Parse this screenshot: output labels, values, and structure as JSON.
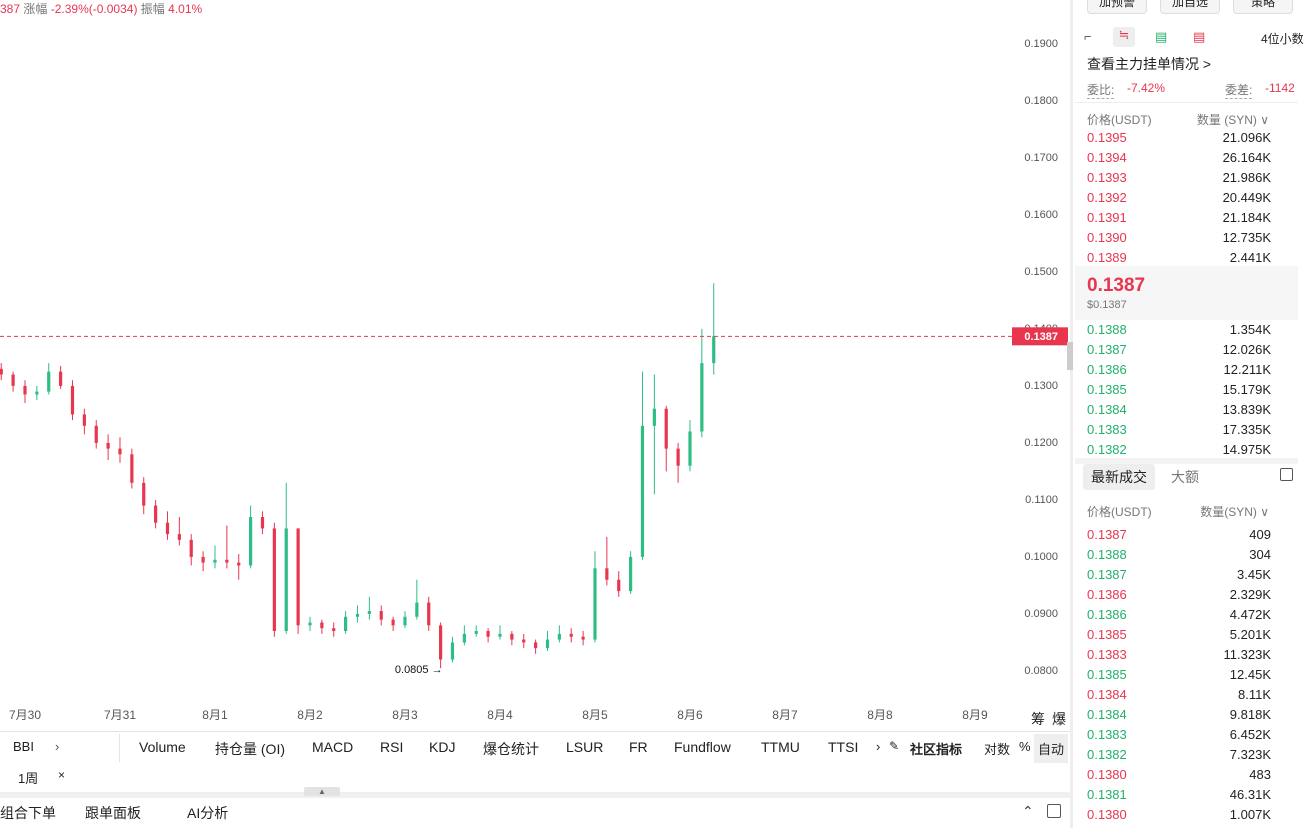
{
  "header": {
    "symbol_fragment": "387",
    "change_label": "涨幅",
    "change": "-2.39%(-0.0034)",
    "amplitude_label": "振幅",
    "amplitude": "4.01%"
  },
  "chart_data": {
    "type": "candlestick",
    "up_color": "#2ebd85",
    "down_color": "#e8364f",
    "xlim": [
      -0.263,
      10.316
    ],
    "ylim": [
      0.0749,
      0.1977
    ],
    "xticks": [
      {
        "value": 0,
        "label": "7月30"
      },
      {
        "value": 1,
        "label": "7月31"
      },
      {
        "value": 2,
        "label": "8月1"
      },
      {
        "value": 3,
        "label": "8月2"
      },
      {
        "value": 4,
        "label": "8月3"
      },
      {
        "value": 5,
        "label": "8月4"
      },
      {
        "value": 6,
        "label": "8月5"
      },
      {
        "value": 7,
        "label": "8月6"
      },
      {
        "value": 8,
        "label": "8月7"
      },
      {
        "value": 9,
        "label": "8月8"
      },
      {
        "value": 10,
        "label": "8月9"
      }
    ],
    "yticks": [
      {
        "value": 0.08,
        "label": "0.0800"
      },
      {
        "value": 0.09,
        "label": "0.0900"
      },
      {
        "value": 0.1,
        "label": "0.1000"
      },
      {
        "value": 0.11,
        "label": "0.1100"
      },
      {
        "value": 0.12,
        "label": "0.1200"
      },
      {
        "value": 0.13,
        "label": "0.1300"
      },
      {
        "value": 0.14,
        "label": "0.1400"
      },
      {
        "value": 0.15,
        "label": "0.1500"
      },
      {
        "value": 0.16,
        "label": "0.1600"
      },
      {
        "value": 0.17,
        "label": "0.1700"
      },
      {
        "value": 0.18,
        "label": "0.1800"
      },
      {
        "value": 0.19,
        "label": "0.1900"
      }
    ],
    "last_price": 0.1387,
    "last_price_color": "#e8364f",
    "annotation": {
      "text": "0.0805 →",
      "x": 4.375,
      "y": 0.0805
    },
    "candles": [
      {
        "x": -0.25,
        "open": 0.133,
        "high": 0.134,
        "low": 0.131,
        "close": 0.132
      },
      {
        "x": -0.125,
        "open": 0.132,
        "high": 0.1325,
        "low": 0.129,
        "close": 0.13
      },
      {
        "x": 0,
        "open": 0.13,
        "high": 0.131,
        "low": 0.127,
        "close": 0.1285
      },
      {
        "x": 0.125,
        "open": 0.1285,
        "high": 0.13,
        "low": 0.1275,
        "close": 0.129
      },
      {
        "x": 0.25,
        "open": 0.129,
        "high": 0.134,
        "low": 0.1285,
        "close": 0.1325
      },
      {
        "x": 0.375,
        "open": 0.1325,
        "high": 0.1335,
        "low": 0.1295,
        "close": 0.13
      },
      {
        "x": 0.5,
        "open": 0.13,
        "high": 0.131,
        "low": 0.124,
        "close": 0.125
      },
      {
        "x": 0.625,
        "open": 0.125,
        "high": 0.126,
        "low": 0.1215,
        "close": 0.123
      },
      {
        "x": 0.75,
        "open": 0.123,
        "high": 0.124,
        "low": 0.119,
        "close": 0.12
      },
      {
        "x": 0.875,
        "open": 0.12,
        "high": 0.1215,
        "low": 0.117,
        "close": 0.119
      },
      {
        "x": 1,
        "open": 0.119,
        "high": 0.121,
        "low": 0.1165,
        "close": 0.118
      },
      {
        "x": 1.125,
        "open": 0.118,
        "high": 0.119,
        "low": 0.112,
        "close": 0.113
      },
      {
        "x": 1.25,
        "open": 0.113,
        "high": 0.114,
        "low": 0.1075,
        "close": 0.109
      },
      {
        "x": 1.375,
        "open": 0.109,
        "high": 0.11,
        "low": 0.105,
        "close": 0.106
      },
      {
        "x": 1.5,
        "open": 0.106,
        "high": 0.108,
        "low": 0.103,
        "close": 0.104
      },
      {
        "x": 1.625,
        "open": 0.104,
        "high": 0.107,
        "low": 0.102,
        "close": 0.103
      },
      {
        "x": 1.75,
        "open": 0.103,
        "high": 0.104,
        "low": 0.0985,
        "close": 0.1
      },
      {
        "x": 1.875,
        "open": 0.1,
        "high": 0.101,
        "low": 0.0975,
        "close": 0.099
      },
      {
        "x": 2,
        "open": 0.099,
        "high": 0.102,
        "low": 0.098,
        "close": 0.0995
      },
      {
        "x": 2.125,
        "open": 0.0995,
        "high": 0.1055,
        "low": 0.098,
        "close": 0.099
      },
      {
        "x": 2.25,
        "open": 0.099,
        "high": 0.1005,
        "low": 0.096,
        "close": 0.0985
      },
      {
        "x": 2.375,
        "open": 0.0985,
        "high": 0.109,
        "low": 0.098,
        "close": 0.107
      },
      {
        "x": 2.5,
        "open": 0.107,
        "high": 0.108,
        "low": 0.104,
        "close": 0.105
      },
      {
        "x": 2.625,
        "open": 0.105,
        "high": 0.106,
        "low": 0.086,
        "close": 0.087
      },
      {
        "x": 2.75,
        "open": 0.087,
        "high": 0.113,
        "low": 0.0865,
        "close": 0.105
      },
      {
        "x": 2.875,
        "open": 0.105,
        "high": 0.105,
        "low": 0.0865,
        "close": 0.088
      },
      {
        "x": 3,
        "open": 0.088,
        "high": 0.0895,
        "low": 0.087,
        "close": 0.0885
      },
      {
        "x": 3.125,
        "open": 0.0885,
        "high": 0.089,
        "low": 0.0865,
        "close": 0.0875
      },
      {
        "x": 3.25,
        "open": 0.0875,
        "high": 0.0885,
        "low": 0.086,
        "close": 0.087
      },
      {
        "x": 3.375,
        "open": 0.087,
        "high": 0.0905,
        "low": 0.0865,
        "close": 0.0895
      },
      {
        "x": 3.5,
        "open": 0.0895,
        "high": 0.0915,
        "low": 0.0885,
        "close": 0.09
      },
      {
        "x": 3.625,
        "open": 0.09,
        "high": 0.093,
        "low": 0.089,
        "close": 0.0905
      },
      {
        "x": 3.75,
        "open": 0.0905,
        "high": 0.0915,
        "low": 0.088,
        "close": 0.089
      },
      {
        "x": 3.875,
        "open": 0.089,
        "high": 0.0895,
        "low": 0.087,
        "close": 0.088
      },
      {
        "x": 4,
        "open": 0.088,
        "high": 0.0905,
        "low": 0.0875,
        "close": 0.0895
      },
      {
        "x": 4.125,
        "open": 0.0895,
        "high": 0.096,
        "low": 0.089,
        "close": 0.092
      },
      {
        "x": 4.25,
        "open": 0.092,
        "high": 0.093,
        "low": 0.087,
        "close": 0.088
      },
      {
        "x": 4.375,
        "open": 0.088,
        "high": 0.0885,
        "low": 0.0805,
        "close": 0.082
      },
      {
        "x": 4.5,
        "open": 0.082,
        "high": 0.086,
        "low": 0.0815,
        "close": 0.085
      },
      {
        "x": 4.625,
        "open": 0.085,
        "high": 0.088,
        "low": 0.0845,
        "close": 0.0865
      },
      {
        "x": 4.75,
        "open": 0.0865,
        "high": 0.088,
        "low": 0.086,
        "close": 0.087
      },
      {
        "x": 4.875,
        "open": 0.087,
        "high": 0.0875,
        "low": 0.085,
        "close": 0.086
      },
      {
        "x": 5,
        "open": 0.086,
        "high": 0.088,
        "low": 0.0855,
        "close": 0.0865
      },
      {
        "x": 5.125,
        "open": 0.0865,
        "high": 0.087,
        "low": 0.0845,
        "close": 0.0855
      },
      {
        "x": 5.25,
        "open": 0.0855,
        "high": 0.0865,
        "low": 0.084,
        "close": 0.085
      },
      {
        "x": 5.375,
        "open": 0.085,
        "high": 0.0855,
        "low": 0.083,
        "close": 0.084
      },
      {
        "x": 5.5,
        "open": 0.084,
        "high": 0.087,
        "low": 0.0835,
        "close": 0.0855
      },
      {
        "x": 5.625,
        "open": 0.0855,
        "high": 0.088,
        "low": 0.085,
        "close": 0.0865
      },
      {
        "x": 5.75,
        "open": 0.0865,
        "high": 0.0875,
        "low": 0.085,
        "close": 0.086
      },
      {
        "x": 5.875,
        "open": 0.086,
        "high": 0.087,
        "low": 0.0845,
        "close": 0.0855
      },
      {
        "x": 6,
        "open": 0.0855,
        "high": 0.101,
        "low": 0.085,
        "close": 0.098
      },
      {
        "x": 6.125,
        "open": 0.098,
        "high": 0.1035,
        "low": 0.095,
        "close": 0.096
      },
      {
        "x": 6.25,
        "open": 0.096,
        "high": 0.0975,
        "low": 0.093,
        "close": 0.094
      },
      {
        "x": 6.375,
        "open": 0.094,
        "high": 0.101,
        "low": 0.0935,
        "close": 0.1
      },
      {
        "x": 6.5,
        "open": 0.1,
        "high": 0.1325,
        "low": 0.0995,
        "close": 0.123
      },
      {
        "x": 6.625,
        "open": 0.123,
        "high": 0.132,
        "low": 0.111,
        "close": 0.126
      },
      {
        "x": 6.75,
        "open": 0.126,
        "high": 0.1265,
        "low": 0.115,
        "close": 0.119
      },
      {
        "x": 6.875,
        "open": 0.119,
        "high": 0.12,
        "low": 0.113,
        "close": 0.116
      },
      {
        "x": 7,
        "open": 0.116,
        "high": 0.124,
        "low": 0.115,
        "close": 0.122
      },
      {
        "x": 7.125,
        "open": 0.122,
        "high": 0.14,
        "low": 0.121,
        "close": 0.134
      },
      {
        "x": 7.25,
        "open": 0.134,
        "high": 0.148,
        "low": 0.132,
        "close": 0.1387
      }
    ]
  },
  "chart_side_labels": [
    "筹",
    "爆"
  ],
  "indicators": {
    "first": "BBI",
    "items": [
      "Volume",
      "持仓量 (OI)",
      "MACD",
      "RSI",
      "KDJ",
      "爆仓统计",
      "LSUR",
      "FR",
      "Fundflow",
      "TTMU",
      "TTSI"
    ],
    "community": "社区指标",
    "log": "对数",
    "percent": "%",
    "auto": "自动",
    "period": "1周",
    "close": "×"
  },
  "bottom_bar": [
    "组合下单",
    "跟单面板",
    "AI分析"
  ],
  "top_buttons": [
    "加预警",
    "加自选",
    "策略"
  ],
  "order_book": {
    "decimals": "4位小数",
    "main_orders": "查看主力挂单情况 >",
    "ratio_label": "委比:",
    "ratio": "-7.42%",
    "diff_label": "委差:",
    "diff": "-1142",
    "price_header": "价格(USDT)",
    "qty_header": "数量 (SYN) ∨",
    "ask_color": "#e8364f",
    "bid_color": "#20b26c",
    "asks": [
      [
        "0.1395",
        "21.096K"
      ],
      [
        "0.1394",
        "26.164K"
      ],
      [
        "0.1393",
        "21.986K"
      ],
      [
        "0.1392",
        "20.449K"
      ],
      [
        "0.1391",
        "21.184K"
      ],
      [
        "0.1390",
        "12.735K"
      ],
      [
        "0.1389",
        "2.441K"
      ]
    ],
    "mid_price": "0.1387",
    "mid_usd": "$0.1387",
    "bids": [
      [
        "0.1388",
        "1.354K"
      ],
      [
        "0.1387",
        "12.026K"
      ],
      [
        "0.1386",
        "12.211K"
      ],
      [
        "0.1385",
        "15.179K"
      ],
      [
        "0.1384",
        "13.839K"
      ],
      [
        "0.1383",
        "17.335K"
      ],
      [
        "0.1382",
        "14.975K"
      ]
    ]
  },
  "trades": {
    "tab_latest": "最新成交",
    "tab_large": "大额",
    "price_header": "价格(USDT)",
    "qty_header": "数量(SYN) ∨",
    "rows": [
      {
        "price": "0.1387",
        "qty": "409",
        "color": "#e8364f"
      },
      {
        "price": "0.1388",
        "qty": "304",
        "color": "#20b26c"
      },
      {
        "price": "0.1387",
        "qty": "3.45K",
        "color": "#20b26c"
      },
      {
        "price": "0.1386",
        "qty": "2.329K",
        "color": "#e8364f"
      },
      {
        "price": "0.1386",
        "qty": "4.472K",
        "color": "#20b26c"
      },
      {
        "price": "0.1385",
        "qty": "5.201K",
        "color": "#e8364f"
      },
      {
        "price": "0.1383",
        "qty": "11.323K",
        "color": "#e8364f"
      },
      {
        "price": "0.1385",
        "qty": "12.45K",
        "color": "#20b26c"
      },
      {
        "price": "0.1384",
        "qty": "8.11K",
        "color": "#e8364f"
      },
      {
        "price": "0.1384",
        "qty": "9.818K",
        "color": "#20b26c"
      },
      {
        "price": "0.1383",
        "qty": "6.452K",
        "color": "#20b26c"
      },
      {
        "price": "0.1382",
        "qty": "7.323K",
        "color": "#20b26c"
      },
      {
        "price": "0.1380",
        "qty": "483",
        "color": "#e8364f"
      },
      {
        "price": "0.1381",
        "qty": "46.31K",
        "color": "#20b26c"
      },
      {
        "price": "0.1380",
        "qty": "1.007K",
        "color": "#e8364f"
      }
    ]
  }
}
